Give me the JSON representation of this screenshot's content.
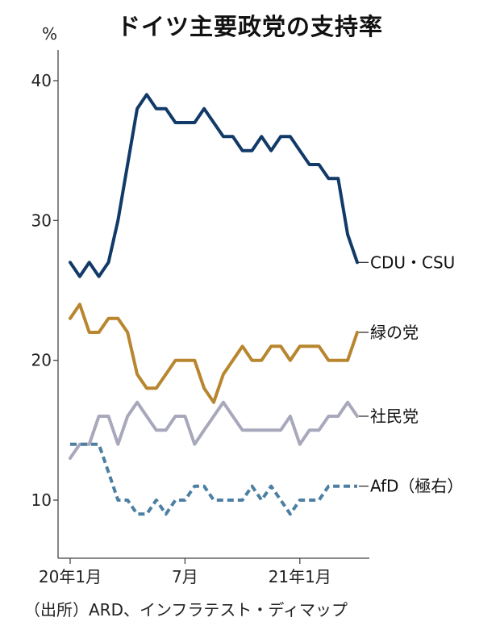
{
  "chart_data": {
    "type": "line",
    "title": "ドイツ主要政党の支持率",
    "ylabel": "%",
    "ylim": [
      6,
      42
    ],
    "yticks": [
      10,
      20,
      30,
      40
    ],
    "x": [
      0,
      1,
      2,
      3,
      4,
      5,
      6,
      7,
      8,
      9,
      10,
      11,
      12,
      13,
      14,
      15,
      16,
      17,
      18,
      19,
      20,
      21,
      22,
      23,
      24,
      25,
      26,
      27,
      28,
      29,
      30
    ],
    "xticks": [
      {
        "index": 0,
        "label": "20年1月"
      },
      {
        "index": 12,
        "label": "7月"
      },
      {
        "index": 24,
        "label": "21年1月"
      }
    ],
    "series": [
      {
        "name": "CDU・CSU",
        "color": "#123a68",
        "dashed": false,
        "values": [
          27,
          26,
          27,
          26,
          27,
          30,
          34,
          38,
          39,
          38,
          38,
          37,
          37,
          37,
          38,
          37,
          36,
          36,
          35,
          35,
          36,
          35,
          36,
          36,
          35,
          34,
          34,
          33,
          33,
          29,
          27
        ]
      },
      {
        "name": "緑の党",
        "color": "#b8862f",
        "dashed": false,
        "values": [
          23,
          24,
          22,
          22,
          23,
          23,
          22,
          19,
          18,
          18,
          19,
          20,
          20,
          20,
          18,
          17,
          19,
          20,
          21,
          20,
          20,
          21,
          21,
          20,
          21,
          21,
          21,
          20,
          20,
          20,
          22
        ]
      },
      {
        "name": "社民党",
        "color": "#a8a8bc",
        "dashed": false,
        "values": [
          13,
          14,
          14,
          16,
          16,
          14,
          16,
          17,
          16,
          15,
          15,
          16,
          16,
          14,
          15,
          16,
          17,
          16,
          15,
          15,
          15,
          15,
          15,
          16,
          14,
          15,
          15,
          16,
          16,
          17,
          16
        ]
      },
      {
        "name": "AfD（極右）",
        "color": "#4d7fa3",
        "dashed": true,
        "values": [
          14,
          14,
          14,
          14,
          12,
          10,
          10,
          9,
          9,
          10,
          9,
          10,
          10,
          11,
          11,
          10,
          10,
          10,
          10,
          11,
          10,
          11,
          10,
          9,
          10,
          10,
          10,
          11,
          11,
          11,
          11
        ]
      }
    ]
  },
  "source": "（出所）ARD、インフラテスト・ディマップ"
}
